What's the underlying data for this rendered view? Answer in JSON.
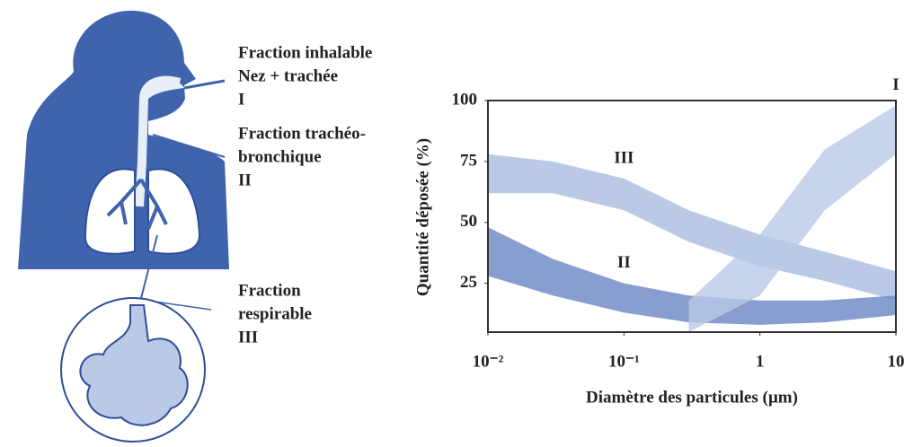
{
  "illustration": {
    "labels": [
      [
        "Fraction inhalable",
        "Nez + trachée",
        "I"
      ],
      [
        "Fraction trachéo-",
        "bronchique",
        "II"
      ],
      [
        "Fraction",
        "respirable",
        "III"
      ]
    ]
  },
  "chart_data": {
    "type": "band",
    "y_label": "Quantité déposée (%)",
    "x_label": "Diamètre des particules (µm)",
    "x": [
      0.01,
      0.03,
      0.1,
      0.3,
      1,
      3,
      10
    ],
    "log_x": true,
    "xlim": [
      0.01,
      10
    ],
    "xticks": [
      {
        "value": 0.01,
        "label": "10⁻²"
      },
      {
        "value": 0.1,
        "label": "10⁻¹"
      },
      1,
      10
    ],
    "ylim": [
      5,
      100
    ],
    "yticks": [
      25,
      50,
      75,
      100
    ],
    "series": [
      {
        "name": "III",
        "color": "#a9bde0",
        "upper": [
          78,
          75,
          68,
          55,
          45,
          38,
          30
        ],
        "lower": [
          62,
          62,
          55,
          42,
          32,
          26,
          18
        ]
      },
      {
        "name": "II",
        "color": "#6a86c4",
        "upper": [
          48,
          35,
          25,
          20,
          18,
          18,
          20
        ],
        "lower": [
          28,
          20,
          13,
          9,
          8,
          9,
          12
        ]
      },
      {
        "name": "I",
        "color": "#b9c9e6",
        "upper": [
          null,
          null,
          null,
          18,
          45,
          80,
          98
        ],
        "lower": [
          null,
          null,
          null,
          5,
          20,
          55,
          78
        ]
      }
    ]
  }
}
